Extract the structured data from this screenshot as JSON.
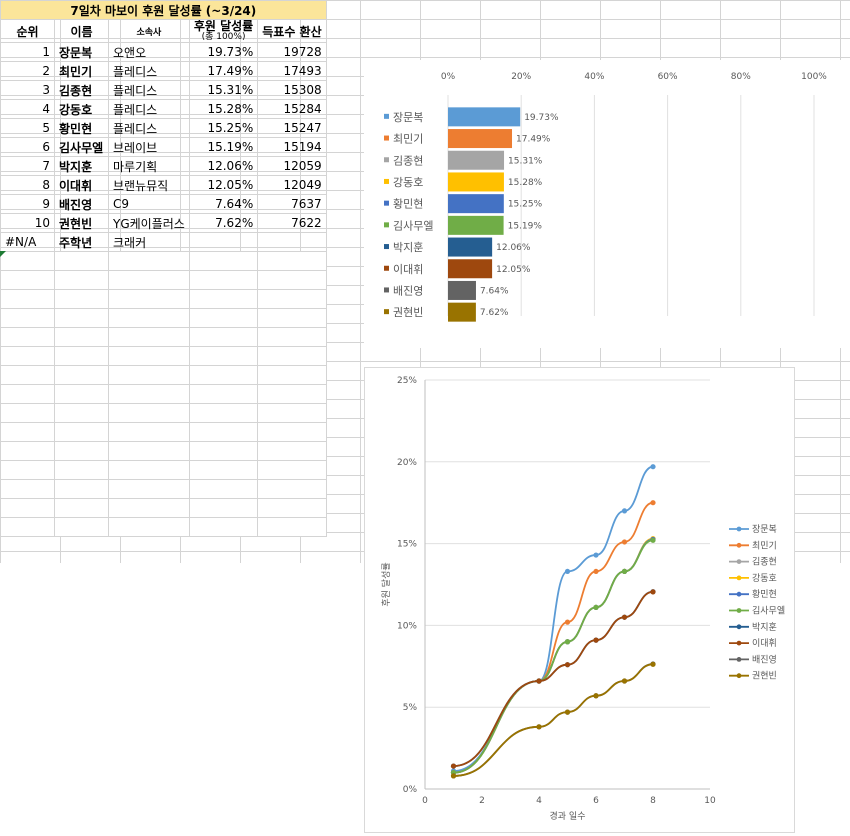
{
  "sheet": {
    "title": "7일차 마보이 후원 달성률 (~3/24)",
    "headers": {
      "rank": "순위",
      "name": "이름",
      "agency": "소속사",
      "rate": "후원 달성률",
      "rate_sub": "(총 100%)",
      "votes": "득표수 환산"
    },
    "rows": [
      {
        "rank": "1",
        "name": "장문복",
        "agency": "오앤오",
        "rate": "19.73%",
        "votes": "19728"
      },
      {
        "rank": "2",
        "name": "최민기",
        "agency": "플레디스",
        "rate": "17.49%",
        "votes": "17493"
      },
      {
        "rank": "3",
        "name": "김종현",
        "agency": "플레디스",
        "rate": "15.31%",
        "votes": "15308"
      },
      {
        "rank": "4",
        "name": "강동호",
        "agency": "플레디스",
        "rate": "15.28%",
        "votes": "15284"
      },
      {
        "rank": "5",
        "name": "황민현",
        "agency": "플레디스",
        "rate": "15.25%",
        "votes": "15247"
      },
      {
        "rank": "6",
        "name": "김사무엘",
        "agency": "브레이브",
        "rate": "15.19%",
        "votes": "15194"
      },
      {
        "rank": "7",
        "name": "박지훈",
        "agency": "마루기획",
        "rate": "12.06%",
        "votes": "12059"
      },
      {
        "rank": "8",
        "name": "이대휘",
        "agency": "브랜뉴뮤직",
        "rate": "12.05%",
        "votes": "12049"
      },
      {
        "rank": "9",
        "name": "배진영",
        "agency": "C9",
        "rate": "7.64%",
        "votes": "7637"
      },
      {
        "rank": "10",
        "name": "권현빈",
        "agency": "YG케이플러스",
        "rate": "7.62%",
        "votes": "7622"
      },
      {
        "rank": "#N/A",
        "name": "주학년",
        "agency": "크래커",
        "rate": "",
        "votes": ""
      }
    ]
  },
  "chart_data": [
    {
      "type": "bar",
      "orientation": "horizontal",
      "categories": [
        "장문복",
        "최민기",
        "김종현",
        "강동호",
        "황민현",
        "김사무엘",
        "박지훈",
        "이대휘",
        "배진영",
        "권현빈"
      ],
      "values": [
        19.73,
        17.49,
        15.31,
        15.28,
        15.25,
        15.19,
        12.06,
        12.05,
        7.64,
        7.62
      ],
      "value_labels": [
        "19.73%",
        "17.49%",
        "15.31%",
        "15.28%",
        "15.25%",
        "15.19%",
        "12.06%",
        "12.05%",
        "7.64%",
        "7.62%"
      ],
      "colors": [
        "#5b9bd5",
        "#ed7d31",
        "#a5a5a5",
        "#ffc000",
        "#4472c4",
        "#70ad47",
        "#255e91",
        "#9e480e",
        "#636363",
        "#997300"
      ],
      "xlim": [
        0,
        100
      ],
      "x_ticks": [
        "0%",
        "20%",
        "40%",
        "60%",
        "80%",
        "100%"
      ],
      "x_tick_values": [
        0,
        20,
        40,
        60,
        80,
        100
      ],
      "grid": true,
      "legend": "left"
    },
    {
      "type": "line",
      "xlabel": "경과 일수",
      "ylabel": "후원 달성률",
      "xlim": [
        0,
        10
      ],
      "ylim": [
        0,
        25
      ],
      "x_ticks": [
        "0",
        "2",
        "4",
        "6",
        "8",
        "10"
      ],
      "x_tick_values": [
        0,
        2,
        4,
        6,
        8,
        10
      ],
      "y_ticks": [
        "0%",
        "5%",
        "10%",
        "15%",
        "20%",
        "25%"
      ],
      "y_tick_values": [
        0,
        5,
        10,
        15,
        20,
        25
      ],
      "grid": true,
      "legend": "right",
      "x": [
        1,
        4,
        5,
        6,
        7,
        8
      ],
      "series": [
        {
          "name": "장문복",
          "color": "#5b9bd5",
          "values": [
            1.1,
            6.6,
            13.3,
            14.3,
            17.0,
            19.7
          ]
        },
        {
          "name": "최민기",
          "color": "#ed7d31",
          "values": [
            1.0,
            6.6,
            10.2,
            13.3,
            15.1,
            17.5
          ]
        },
        {
          "name": "김종현",
          "color": "#a5a5a5",
          "values": [
            1.0,
            6.6,
            9.0,
            11.1,
            13.3,
            15.3
          ]
        },
        {
          "name": "강동호",
          "color": "#ffc000",
          "values": [
            1.0,
            6.6,
            9.0,
            11.1,
            13.3,
            15.3
          ]
        },
        {
          "name": "황민현",
          "color": "#4472c4",
          "values": [
            1.0,
            6.6,
            9.0,
            11.1,
            13.3,
            15.25
          ]
        },
        {
          "name": "김사무엘",
          "color": "#70ad47",
          "values": [
            1.0,
            6.6,
            9.0,
            11.1,
            13.3,
            15.2
          ]
        },
        {
          "name": "박지훈",
          "color": "#255e91",
          "values": [
            1.4,
            6.6,
            7.6,
            9.1,
            10.5,
            12.06
          ]
        },
        {
          "name": "이대휘",
          "color": "#9e480e",
          "values": [
            1.4,
            6.6,
            7.6,
            9.1,
            10.5,
            12.05
          ]
        },
        {
          "name": "배진영",
          "color": "#636363",
          "values": [
            0.8,
            3.8,
            4.7,
            5.7,
            6.6,
            7.64
          ]
        },
        {
          "name": "권현빈",
          "color": "#997300",
          "values": [
            0.8,
            3.8,
            4.7,
            5.7,
            6.6,
            7.62
          ]
        }
      ]
    }
  ]
}
